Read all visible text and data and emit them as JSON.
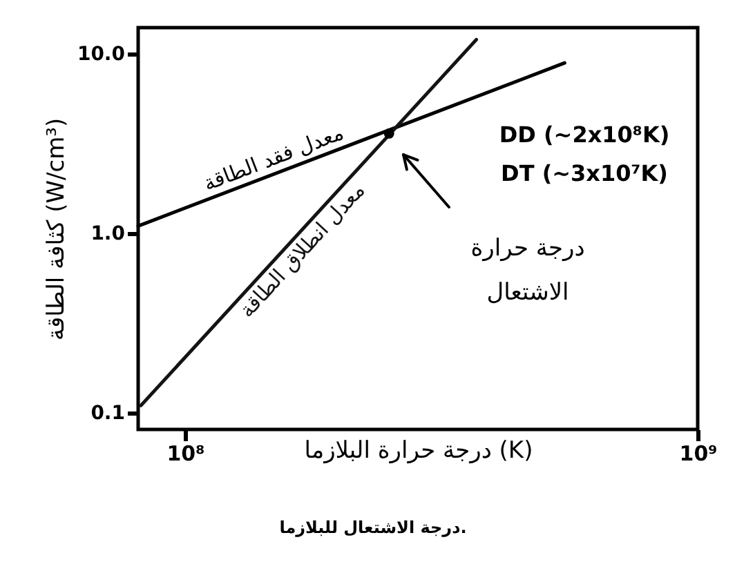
{
  "chart_data": {
    "type": "line",
    "xlabel": "درجة حرارة البلازما (K)",
    "ylabel": "كثافة الطاقة (W/cm³)",
    "log": "xy",
    "xlim": [
      81000000.0,
      1000000000.0
    ],
    "ylim": [
      0.081,
      14
    ],
    "xticks": [
      {
        "value": 100000000.0,
        "label": "10⁸"
      },
      {
        "value": 1000000000.0,
        "label": "10⁹"
      }
    ],
    "yticks": [
      {
        "value": 0.1,
        "label": "0.1"
      },
      {
        "value": 1,
        "label": "1.0"
      },
      {
        "value": 10,
        "label": "10.0"
      }
    ],
    "series": [
      {
        "name": "معدل فقد الطاقة",
        "color": "#000000",
        "x": [
          81000000.0,
          550000000.0
        ],
        "values": [
          1.1,
          8.9
        ]
      },
      {
        "name": "معدل انطلاق الطاقة",
        "color": "#141414",
        "x": [
          82000000.0,
          370000000.0
        ],
        "values": [
          0.11,
          12
        ]
      },
      {
        "type": "scatter",
        "color": "#000000",
        "x": [
          250000000.0
        ],
        "values": [
          3.6
        ]
      }
    ],
    "annotations": [
      "DD (~2x10⁸K)",
      "DT (~3x10⁷K)",
      "درجة حرارة الاشتعال",
      "درجة الاشتعال للبلازما."
    ],
    "grid": false,
    "line_style": "solid"
  }
}
